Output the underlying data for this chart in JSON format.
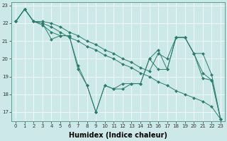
{
  "series": [
    {
      "x": [
        0,
        1,
        2,
        3,
        4,
        5,
        6,
        7,
        8,
        9,
        10,
        11,
        12,
        13,
        14,
        15,
        16,
        17,
        18,
        19,
        20,
        21,
        22,
        23
      ],
      "y": [
        22.1,
        22.8,
        22.1,
        22.0,
        21.8,
        21.5,
        21.2,
        21.0,
        20.7,
        20.5,
        20.2,
        20.0,
        19.7,
        19.5,
        19.2,
        19.0,
        18.7,
        18.5,
        18.2,
        18.0,
        17.8,
        17.6,
        17.3,
        16.6
      ]
    },
    {
      "x": [
        0,
        1,
        2,
        3,
        4,
        5,
        6,
        7,
        8,
        9,
        10,
        11,
        12,
        13,
        14,
        15,
        16,
        17,
        18,
        19,
        20,
        21,
        22,
        23
      ],
      "y": [
        22.1,
        22.8,
        22.1,
        21.9,
        21.5,
        21.3,
        21.3,
        19.6,
        18.5,
        17.0,
        18.5,
        18.3,
        18.6,
        18.6,
        18.6,
        20.0,
        20.5,
        19.4,
        21.2,
        21.2,
        20.3,
        19.2,
        18.8,
        16.6
      ]
    },
    {
      "x": [
        0,
        1,
        2,
        3,
        4,
        5,
        6,
        7,
        8,
        9,
        10,
        11,
        12,
        13,
        14,
        15,
        16,
        17,
        18,
        19,
        20,
        21,
        22,
        23
      ],
      "y": [
        22.1,
        22.8,
        22.1,
        22.0,
        21.1,
        21.3,
        21.3,
        19.4,
        18.5,
        17.0,
        18.5,
        18.3,
        18.3,
        18.6,
        18.6,
        20.0,
        19.4,
        19.4,
        21.2,
        21.2,
        20.3,
        18.9,
        18.8,
        16.6
      ]
    },
    {
      "x": [
        0,
        1,
        2,
        3,
        4,
        5,
        6,
        7,
        8,
        9,
        10,
        11,
        12,
        13,
        14,
        15,
        16,
        17,
        18,
        19,
        20,
        21,
        22,
        23
      ],
      "y": [
        22.1,
        22.8,
        22.1,
        22.1,
        22.0,
        21.8,
        21.5,
        21.3,
        21.0,
        20.8,
        20.5,
        20.3,
        20.0,
        19.8,
        19.5,
        19.3,
        20.3,
        20.0,
        21.2,
        21.2,
        20.3,
        20.3,
        19.1,
        16.6
      ]
    }
  ],
  "color": "#2d7d6e",
  "marker": "D",
  "markersize": 2.0,
  "linewidth": 0.7,
  "xlabel": "Humidex (Indice chaleur)",
  "xlabel_fontsize": 7,
  "xlabel_fontweight": "bold",
  "ylim": [
    16.5,
    23.2
  ],
  "xlim": [
    -0.5,
    23.5
  ],
  "yticks": [
    17,
    18,
    19,
    20,
    21,
    22,
    23
  ],
  "xticks": [
    0,
    1,
    2,
    3,
    4,
    5,
    6,
    7,
    8,
    9,
    10,
    11,
    12,
    13,
    14,
    15,
    16,
    17,
    18,
    19,
    20,
    21,
    22,
    23
  ],
  "tick_fontsize": 5.0,
  "bg_color": "#cce8e8",
  "grid_color": "#ffffff",
  "spine_color": "#5a9e92",
  "fig_width": 3.2,
  "fig_height": 2.0,
  "dpi": 100
}
